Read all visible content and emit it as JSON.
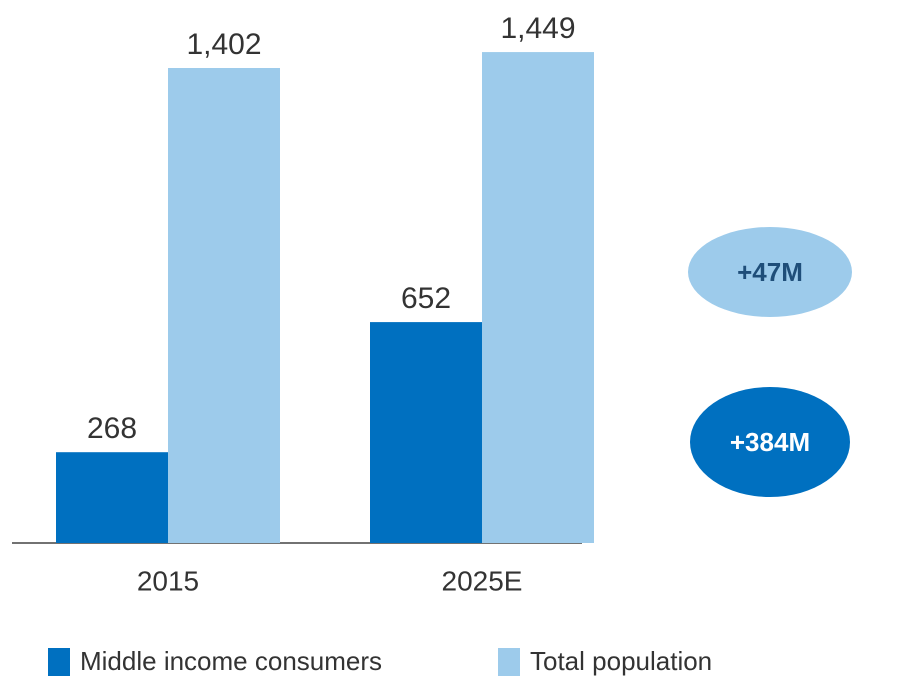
{
  "chart_data": {
    "type": "bar",
    "categories": [
      "2015",
      "2025E"
    ],
    "series": [
      {
        "name": "Middle income consumers",
        "color": "#0070c0",
        "values": [
          268,
          652
        ]
      },
      {
        "name": "Total population",
        "color": "#9dcbeb",
        "values": [
          1402,
          1449
        ],
        "value_labels": [
          "1,402",
          "1,449"
        ]
      }
    ],
    "annotations": [
      "+47M",
      "+384M"
    ]
  }
}
